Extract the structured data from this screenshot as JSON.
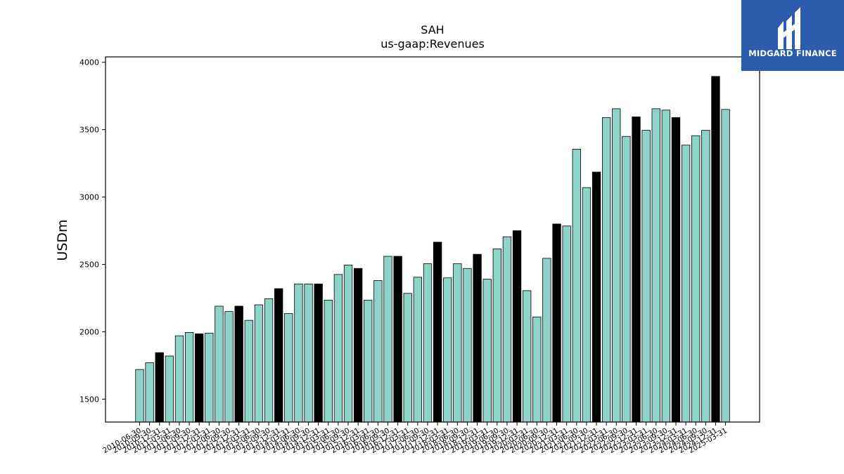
{
  "logo": {
    "text": "MIDGARD FINANCE"
  },
  "chart_data": {
    "type": "bar",
    "title": "SAH",
    "subtitle": "us-gaap:Revenues",
    "ylabel": "USDm",
    "xlabel": "",
    "ylim": [
      1330,
      4040
    ],
    "yticks": [
      1500,
      2000,
      2500,
      3000,
      3500,
      4000
    ],
    "colors": {
      "quarter": "#8dd3c7",
      "annual": "#000000"
    },
    "categories": [
      "2010-06-30",
      "2010-09-30",
      "2010-12-31",
      "2011-03-31",
      "2011-06-30",
      "2011-09-30",
      "2011-12-31",
      "2012-03-31",
      "2012-06-30",
      "2012-09-30",
      "2012-12-31",
      "2013-03-31",
      "2013-06-30",
      "2013-09-30",
      "2013-12-31",
      "2014-03-31",
      "2014-06-30",
      "2014-09-30",
      "2014-12-31",
      "2015-03-31",
      "2015-06-30",
      "2015-09-30",
      "2015-12-31",
      "2016-03-31",
      "2016-06-30",
      "2016-09-30",
      "2016-12-31",
      "2017-03-31",
      "2017-06-30",
      "2017-09-30",
      "2017-12-31",
      "2018-03-31",
      "2018-06-30",
      "2018-09-30",
      "2018-12-31",
      "2019-03-31",
      "2019-06-30",
      "2019-09-30",
      "2019-12-31",
      "2020-03-31",
      "2020-06-30",
      "2020-09-30",
      "2020-12-31",
      "2021-03-31",
      "2021-06-30",
      "2021-09-30",
      "2021-12-31",
      "2022-03-31",
      "2022-06-30",
      "2022-09-30",
      "2022-12-31",
      "2023-03-31",
      "2023-06-30",
      "2023-09-30",
      "2023-12-31",
      "2024-03-31",
      "2024-06-30",
      "2024-09-30",
      "2024-12-31",
      "2025-03-31"
    ],
    "values": [
      1720,
      1770,
      1845,
      1820,
      1970,
      1995,
      1985,
      1990,
      2190,
      2150,
      2190,
      2085,
      2200,
      2245,
      2320,
      2135,
      2355,
      2355,
      2355,
      2235,
      2425,
      2495,
      2470,
      2235,
      2380,
      2560,
      2560,
      2285,
      2405,
      2505,
      2665,
      2400,
      2505,
      2470,
      2575,
      2390,
      2615,
      2705,
      2750,
      2305,
      2110,
      2545,
      2800,
      2785,
      3355,
      3070,
      3185,
      3590,
      3655,
      3450,
      3595,
      3495,
      3655,
      3645,
      3590,
      3385,
      3455,
      3495,
      3895,
      3650
    ],
    "annual_flags": [
      0,
      0,
      1,
      0,
      0,
      0,
      1,
      0,
      0,
      0,
      1,
      0,
      0,
      0,
      1,
      0,
      0,
      0,
      1,
      0,
      0,
      0,
      1,
      0,
      0,
      0,
      1,
      0,
      0,
      0,
      1,
      0,
      0,
      0,
      1,
      0,
      0,
      0,
      1,
      0,
      0,
      0,
      1,
      0,
      0,
      0,
      1,
      0,
      0,
      0,
      1,
      0,
      0,
      0,
      1,
      0,
      0,
      0,
      1,
      0
    ]
  }
}
